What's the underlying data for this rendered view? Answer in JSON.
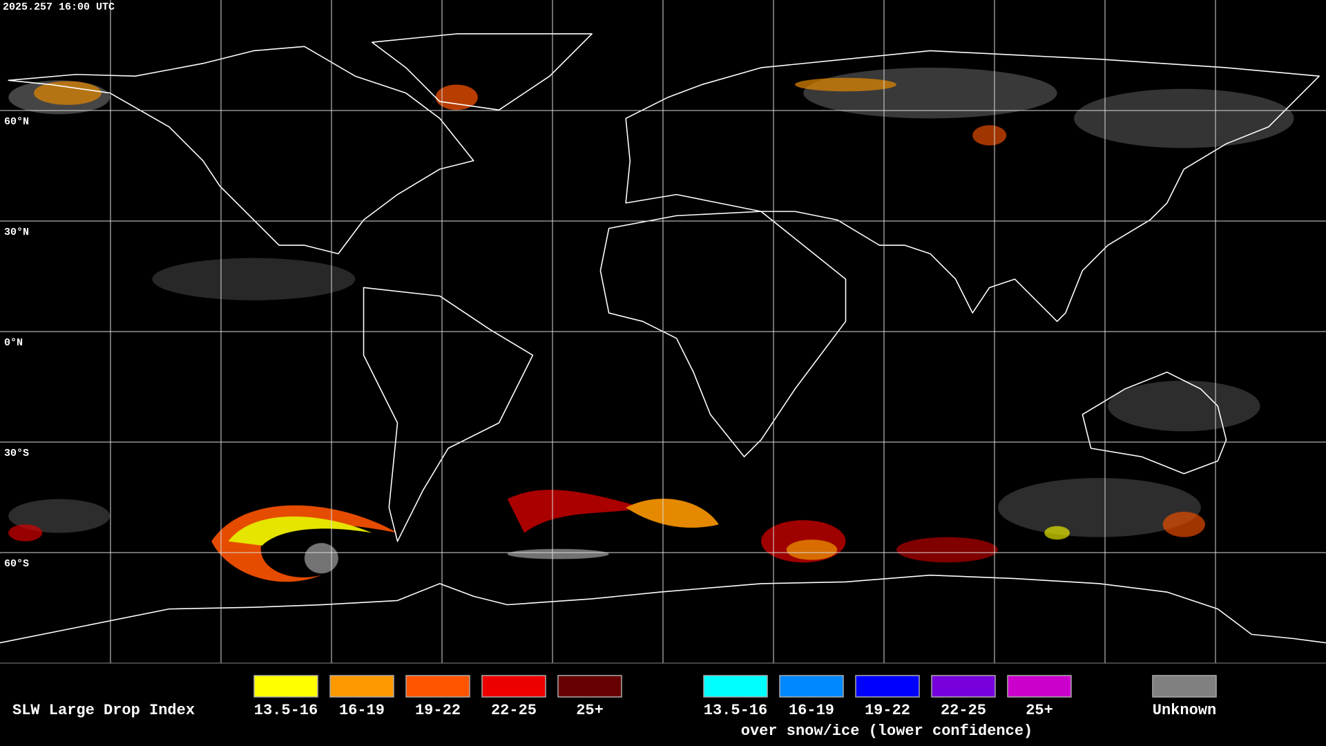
{
  "header": {
    "timestamp": "2025.257 16:00 UTC"
  },
  "map": {
    "lat_labels": [
      "60°N",
      "30°N",
      "0°N",
      "30°S",
      "60°S"
    ]
  },
  "legend": {
    "title": "SLW Large Drop Index",
    "items": [
      {
        "label": "13.5-16",
        "color": "#ffff00"
      },
      {
        "label": "16-19",
        "color": "#ff9900"
      },
      {
        "label": "19-22",
        "color": "#ff5500"
      },
      {
        "label": "22-25",
        "color": "#ee0000"
      },
      {
        "label": "25+",
        "color": "#660000"
      }
    ],
    "snow_items": [
      {
        "label": "13.5-16",
        "color": "#00ffff"
      },
      {
        "label": "16-19",
        "color": "#0088ff"
      },
      {
        "label": "19-22",
        "color": "#0000ff"
      },
      {
        "label": "22-25",
        "color": "#7700dd"
      },
      {
        "label": "25+",
        "color": "#cc00cc"
      }
    ],
    "snow_caption": "over snow/ice (lower confidence)",
    "unknown": {
      "label": "Unknown",
      "color": "#808080"
    }
  }
}
